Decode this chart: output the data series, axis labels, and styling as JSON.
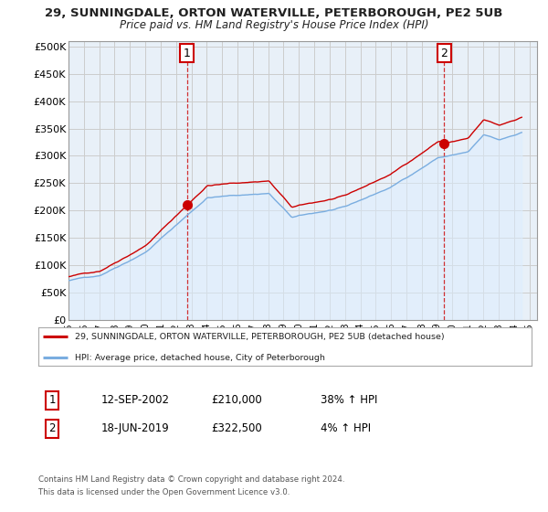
{
  "title_line1": "29, SUNNINGDALE, ORTON WATERVILLE, PETERBOROUGH, PE2 5UB",
  "title_line2": "Price paid vs. HM Land Registry's House Price Index (HPI)",
  "ytick_values": [
    0,
    50000,
    100000,
    150000,
    200000,
    250000,
    300000,
    350000,
    400000,
    450000,
    500000
  ],
  "ylim": [
    0,
    510000
  ],
  "xlim_start": 1995.0,
  "xlim_end": 2025.5,
  "sale1_x": 2002.71,
  "sale1_y": 210000,
  "sale1_label": "1",
  "sale1_date": "12-SEP-2002",
  "sale1_price": "£210,000",
  "sale1_hpi": "38% ↑ HPI",
  "sale2_x": 2019.46,
  "sale2_y": 322500,
  "sale2_label": "2",
  "sale2_date": "18-JUN-2019",
  "sale2_price": "£322,500",
  "sale2_hpi": "4% ↑ HPI",
  "legend_line1": "29, SUNNINGDALE, ORTON WATERVILLE, PETERBOROUGH, PE2 5UB (detached house)",
  "legend_line2": "HPI: Average price, detached house, City of Peterborough",
  "footer_line1": "Contains HM Land Registry data © Crown copyright and database right 2024.",
  "footer_line2": "This data is licensed under the Open Government Licence v3.0.",
  "line_color_red": "#cc0000",
  "line_color_blue": "#7aade0",
  "fill_color_blue": "#ddeeff",
  "bg_color": "#ffffff",
  "grid_color": "#cccccc",
  "annotation_box_color": "#cc0000",
  "plot_bg": "#e8f0f8"
}
